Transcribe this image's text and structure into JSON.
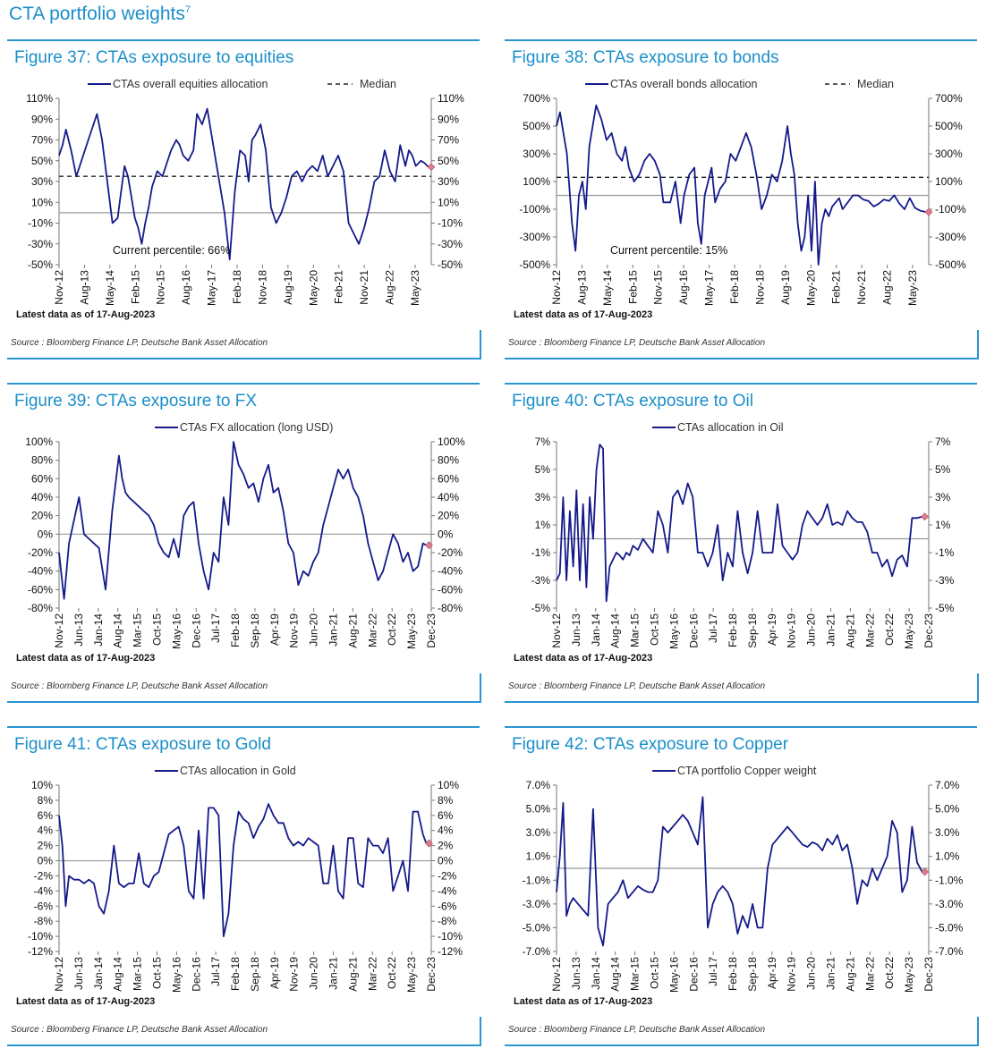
{
  "page_title": "CTA portfolio weights",
  "page_title_sup": "7",
  "colors": {
    "series": "#141a8a",
    "accent": "#1a8fc9",
    "median": "#222222",
    "zero": "#999999",
    "last_point": "#e27a8c"
  },
  "chart_data": [
    {
      "type": "line",
      "title": "Figure 37: CTAs exposure to equities",
      "series_name": "CTAs overall equities allocation",
      "median_label": "Median",
      "median": 35,
      "annotation": "Current percentile: 66%",
      "latest": "Latest data as of 17-Aug-2023",
      "source": "Source : Bloomberg Finance LP, Deutsche Bank Asset Allocation",
      "ylim": [
        -50,
        110
      ],
      "yticks": [
        110,
        90,
        70,
        50,
        30,
        10,
        -10,
        -30,
        -50
      ],
      "tick_suffix": "%",
      "xlim": [
        0,
        10.8
      ],
      "xticks": [
        "Nov-12",
        "Aug-13",
        "May-14",
        "Feb-15",
        "Nov-15",
        "Aug-16",
        "May-17",
        "Feb-18",
        "Nov-18",
        "Aug-19",
        "May-20",
        "Feb-21",
        "Nov-21",
        "Aug-22",
        "May-23"
      ],
      "x": [
        0,
        0.1,
        0.2,
        0.35,
        0.5,
        0.7,
        0.85,
        1.0,
        1.1,
        1.25,
        1.4,
        1.55,
        1.7,
        1.8,
        1.9,
        2.0,
        2.1,
        2.2,
        2.3,
        2.4,
        2.5,
        2.6,
        2.7,
        2.85,
        3.0,
        3.1,
        3.25,
        3.4,
        3.5,
        3.6,
        3.75,
        3.9,
        4.0,
        4.15,
        4.3,
        4.5,
        4.65,
        4.8,
        4.95,
        5.1,
        5.25,
        5.4,
        5.5,
        5.6,
        5.7,
        5.85,
        6.0,
        6.15,
        6.3,
        6.45,
        6.6,
        6.75,
        6.9,
        7.05,
        7.2,
        7.35,
        7.5,
        7.65,
        7.8,
        7.95,
        8.1,
        8.25,
        8.4,
        8.55,
        8.7,
        8.85,
        9.0,
        9.15,
        9.3,
        9.45,
        9.6,
        9.75,
        9.9,
        10.05,
        10.15,
        10.25,
        10.35,
        10.5,
        10.6,
        10.72
      ],
      "values": [
        55,
        65,
        80,
        60,
        35,
        55,
        70,
        85,
        95,
        70,
        30,
        -10,
        -5,
        20,
        45,
        35,
        15,
        -5,
        -15,
        -30,
        -10,
        5,
        25,
        40,
        35,
        45,
        60,
        70,
        65,
        55,
        50,
        60,
        95,
        85,
        100,
        60,
        30,
        0,
        -45,
        20,
        60,
        55,
        30,
        70,
        75,
        85,
        60,
        5,
        -10,
        0,
        15,
        35,
        40,
        30,
        40,
        45,
        40,
        55,
        35,
        45,
        55,
        40,
        -10,
        -20,
        -30,
        -15,
        5,
        30,
        35,
        60,
        40,
        30,
        65,
        45,
        60,
        55,
        45,
        50,
        48,
        44
      ],
      "last_value": 44
    },
    {
      "type": "line",
      "title": "Figure 38: CTAs exposure to bonds",
      "series_name": "CTAs overall bonds allocation",
      "median_label": "Median",
      "median": 130,
      "annotation": "Current percentile: 15%",
      "latest": "Latest data as of 17-Aug-2023",
      "source": "Source : Bloomberg Finance LP, Deutsche Bank Asset Allocation",
      "ylim": [
        -500,
        700
      ],
      "yticks": [
        700,
        500,
        300,
        100,
        -100,
        -300,
        -500
      ],
      "tick_suffix": "%",
      "xlim": [
        0,
        10.8
      ],
      "xticks": [
        "Nov-12",
        "Aug-13",
        "May-14",
        "Feb-15",
        "Nov-15",
        "Aug-16",
        "May-17",
        "Feb-18",
        "Nov-18",
        "Aug-19",
        "May-20",
        "Feb-21",
        "Nov-21",
        "Aug-22",
        "May-23"
      ],
      "x": [
        0,
        0.1,
        0.2,
        0.3,
        0.45,
        0.55,
        0.65,
        0.75,
        0.85,
        0.95,
        1.05,
        1.15,
        1.3,
        1.45,
        1.6,
        1.75,
        1.9,
        2.0,
        2.1,
        2.25,
        2.4,
        2.55,
        2.7,
        2.85,
        3.0,
        3.1,
        3.2,
        3.3,
        3.45,
        3.6,
        3.7,
        3.85,
        4.0,
        4.1,
        4.2,
        4.3,
        4.4,
        4.5,
        4.6,
        4.75,
        4.9,
        5.05,
        5.2,
        5.35,
        5.5,
        5.65,
        5.8,
        5.95,
        6.1,
        6.25,
        6.4,
        6.55,
        6.7,
        6.8,
        6.9,
        7.0,
        7.1,
        7.2,
        7.3,
        7.4,
        7.5,
        7.6,
        7.7,
        7.8,
        7.9,
        8.0,
        8.1,
        8.2,
        8.3,
        8.45,
        8.6,
        8.75,
        8.9,
        9.05,
        9.2,
        9.35,
        9.5,
        9.65,
        9.8,
        9.95,
        10.1,
        10.25,
        10.4,
        10.55,
        10.72
      ],
      "values": [
        500,
        600,
        450,
        300,
        -200,
        -400,
        0,
        100,
        -100,
        350,
        500,
        650,
        550,
        400,
        450,
        300,
        250,
        350,
        200,
        100,
        150,
        250,
        300,
        250,
        150,
        -50,
        -50,
        -50,
        100,
        -200,
        0,
        150,
        200,
        -200,
        -350,
        0,
        100,
        200,
        -50,
        50,
        100,
        300,
        250,
        350,
        450,
        350,
        150,
        -100,
        0,
        150,
        100,
        250,
        500,
        300,
        150,
        -200,
        -400,
        -300,
        0,
        -400,
        100,
        -500,
        -200,
        -100,
        -150,
        -80,
        -50,
        -20,
        -100,
        -50,
        0,
        0,
        -30,
        -40,
        -80,
        -60,
        -30,
        -40,
        0,
        -60,
        -100,
        -20,
        -90,
        -110,
        -120
      ],
      "last_value": -120
    },
    {
      "type": "line",
      "title": "Figure 39: CTAs exposure to FX",
      "series_name": "CTAs FX allocation (long USD)",
      "latest": "Latest data as of 17-Aug-2023",
      "source": "Source : Bloomberg Finance LP, Deutsche Bank Asset Allocation",
      "ylim": [
        -80,
        100
      ],
      "yticks": [
        100,
        80,
        60,
        40,
        20,
        0,
        -20,
        -40,
        -60,
        -80
      ],
      "tick_suffix": "%",
      "xlim": [
        0,
        11.2
      ],
      "xticks": [
        "Nov-12",
        "Jun-13",
        "Jan-14",
        "Aug-14",
        "Mar-15",
        "Oct-15",
        "May-16",
        "Dec-16",
        "Jul-17",
        "Feb-18",
        "Sep-18",
        "Apr-19",
        "Nov-19",
        "Jun-20",
        "Jan-21",
        "Aug-21",
        "Mar-22",
        "Oct-22",
        "May-23",
        "Dec-23"
      ],
      "x": [
        0,
        0.15,
        0.3,
        0.45,
        0.6,
        0.75,
        0.9,
        1.05,
        1.2,
        1.4,
        1.6,
        1.8,
        1.9,
        2.0,
        2.1,
        2.25,
        2.4,
        2.55,
        2.7,
        2.85,
        3.0,
        3.15,
        3.3,
        3.45,
        3.6,
        3.75,
        3.9,
        4.05,
        4.2,
        4.35,
        4.5,
        4.65,
        4.8,
        4.95,
        5.1,
        5.25,
        5.4,
        5.55,
        5.7,
        5.85,
        6.0,
        6.15,
        6.3,
        6.45,
        6.6,
        6.75,
        6.9,
        7.05,
        7.2,
        7.35,
        7.5,
        7.65,
        7.8,
        7.95,
        8.1,
        8.25,
        8.4,
        8.55,
        8.7,
        8.85,
        9.0,
        9.15,
        9.3,
        9.45,
        9.6,
        9.75,
        9.9,
        10.05,
        10.2,
        10.35,
        10.5,
        10.65,
        10.8,
        10.95,
        11.05
      ],
      "values": [
        -20,
        -70,
        -10,
        15,
        40,
        0,
        -5,
        -10,
        -15,
        -60,
        25,
        85,
        60,
        45,
        40,
        35,
        30,
        25,
        20,
        10,
        -10,
        -20,
        -25,
        -5,
        -25,
        20,
        30,
        35,
        -10,
        -40,
        -60,
        -20,
        -30,
        40,
        10,
        100,
        75,
        65,
        50,
        55,
        35,
        60,
        75,
        45,
        50,
        25,
        -10,
        -20,
        -55,
        -40,
        -45,
        -30,
        -20,
        10,
        30,
        50,
        70,
        60,
        70,
        50,
        40,
        20,
        -10,
        -30,
        -50,
        -40,
        -20,
        0,
        -10,
        -30,
        -20,
        -40,
        -35,
        -10,
        -12
      ],
      "last_value": -12
    },
    {
      "type": "line",
      "title": "Figure 40: CTAs exposure to Oil",
      "series_name": "CTAs allocation in Oil",
      "latest": "Latest data as of 17-Aug-2023",
      "source": "Source : Bloomberg Finance LP, Deutsche Bank Asset Allocation",
      "ylim": [
        -5,
        7
      ],
      "yticks": [
        7,
        5,
        3,
        1,
        -1,
        -3,
        -5
      ],
      "tick_suffix": "%",
      "xlim": [
        0,
        11.2
      ],
      "xticks": [
        "Nov-12",
        "Jun-13",
        "Jan-14",
        "Aug-14",
        "Mar-15",
        "Oct-15",
        "May-16",
        "Dec-16",
        "Jul-17",
        "Feb-18",
        "Sep-18",
        "Apr-19",
        "Nov-19",
        "Jun-20",
        "Jan-21",
        "Aug-21",
        "Mar-22",
        "Oct-22",
        "May-23",
        "Dec-23"
      ],
      "x": [
        0,
        0.1,
        0.2,
        0.3,
        0.4,
        0.5,
        0.6,
        0.7,
        0.8,
        0.9,
        1.0,
        1.1,
        1.2,
        1.3,
        1.4,
        1.5,
        1.6,
        1.7,
        1.8,
        1.9,
        2.0,
        2.1,
        2.2,
        2.3,
        2.45,
        2.6,
        2.75,
        2.9,
        3.05,
        3.2,
        3.35,
        3.5,
        3.65,
        3.8,
        3.95,
        4.1,
        4.25,
        4.4,
        4.55,
        4.7,
        4.85,
        5.0,
        5.15,
        5.3,
        5.45,
        5.6,
        5.75,
        5.9,
        6.05,
        6.2,
        6.35,
        6.5,
        6.65,
        6.8,
        6.95,
        7.1,
        7.25,
        7.4,
        7.55,
        7.7,
        7.85,
        8.0,
        8.15,
        8.3,
        8.45,
        8.6,
        8.75,
        8.9,
        9.05,
        9.2,
        9.35,
        9.5,
        9.65,
        9.8,
        9.95,
        10.1,
        10.25,
        10.4,
        10.55,
        10.7,
        10.85,
        11.0
      ],
      "values": [
        -3,
        -2.5,
        3,
        -3,
        2,
        -2,
        3.5,
        -3,
        2.5,
        -3.5,
        3,
        0,
        5,
        6.8,
        6.5,
        -4.5,
        -2,
        -1.5,
        -1,
        -1.2,
        -1.5,
        -1.0,
        -1.2,
        -0.5,
        -0.8,
        0,
        -0.5,
        -1,
        2,
        1,
        -1,
        3,
        3.5,
        2.5,
        4,
        3,
        -1,
        -1,
        -2,
        -1,
        1,
        -3,
        -1,
        -2,
        2,
        -1,
        -2.5,
        -1,
        2,
        -1,
        -1,
        -1,
        2.5,
        -0.5,
        -1,
        -1.5,
        -1,
        1,
        2,
        1.5,
        1,
        1.5,
        2.5,
        1,
        1.2,
        1,
        2,
        1.5,
        1.2,
        1.2,
        0.5,
        -1,
        -1,
        -2,
        -1.5,
        -2.7,
        -1.5,
        -1.2,
        -2,
        1.5,
        1.5,
        1.6
      ],
      "last_value": 1.6
    },
    {
      "type": "line",
      "title": "Figure 41: CTAs exposure to Gold",
      "series_name": "CTAs allocation in Gold",
      "latest": "Latest data as of 17-Aug-2023",
      "source": "Source : Bloomberg Finance LP, Deutsche Bank Asset Allocation",
      "ylim": [
        -12,
        10
      ],
      "yticks": [
        10,
        8,
        6,
        4,
        2,
        0,
        -2,
        -4,
        -6,
        -8,
        -10,
        -12
      ],
      "tick_suffix": "%",
      "xlim": [
        0,
        11.2
      ],
      "xticks": [
        "Nov-12",
        "Jun-13",
        "Jan-14",
        "Aug-14",
        "Mar-15",
        "Oct-15",
        "May-16",
        "Dec-16",
        "Jul-17",
        "Feb-18",
        "Sep-18",
        "Apr-19",
        "Nov-19",
        "Jun-20",
        "Jan-21",
        "Aug-21",
        "Mar-22",
        "Oct-22",
        "May-23",
        "Dec-23"
      ],
      "x": [
        0,
        0.1,
        0.2,
        0.3,
        0.45,
        0.6,
        0.75,
        0.9,
        1.05,
        1.2,
        1.35,
        1.5,
        1.65,
        1.8,
        1.95,
        2.1,
        2.25,
        2.4,
        2.55,
        2.7,
        2.85,
        3.0,
        3.15,
        3.3,
        3.45,
        3.6,
        3.75,
        3.9,
        4.05,
        4.2,
        4.35,
        4.5,
        4.65,
        4.8,
        4.95,
        5.1,
        5.25,
        5.4,
        5.55,
        5.7,
        5.85,
        6.0,
        6.15,
        6.3,
        6.45,
        6.6,
        6.75,
        6.9,
        7.05,
        7.2,
        7.35,
        7.5,
        7.65,
        7.8,
        7.95,
        8.1,
        8.25,
        8.4,
        8.55,
        8.7,
        8.85,
        9.0,
        9.15,
        9.3,
        9.45,
        9.6,
        9.75,
        9.9,
        10.05,
        10.2,
        10.35,
        10.5,
        10.65,
        10.8,
        10.95,
        11.05
      ],
      "values": [
        6,
        2,
        -6,
        -2,
        -2.5,
        -2.5,
        -3,
        -2.5,
        -3,
        -6,
        -7,
        -4,
        2,
        -3,
        -3.5,
        -3,
        -3,
        1,
        -3,
        -3.5,
        -2,
        -1.5,
        1,
        3.5,
        4,
        4.5,
        2,
        -4,
        -5,
        4,
        -5,
        7,
        7,
        6,
        -10,
        -7,
        2,
        6.5,
        5.5,
        5,
        3,
        4.5,
        5.5,
        7.5,
        6,
        5,
        5,
        3,
        2,
        2.5,
        2,
        3,
        2.5,
        2,
        -3,
        -3,
        2,
        -4,
        -5,
        3,
        3,
        -3,
        -3.5,
        3,
        2,
        2,
        1,
        3,
        -4,
        -2,
        0,
        -4,
        6.5,
        6.5,
        3.5,
        2.3
      ],
      "last_value": 2.3
    },
    {
      "type": "line",
      "title": "Figure 42: CTAs exposure to Copper",
      "series_name": "CTA portfolio Copper weight",
      "latest": "Latest data as of 17-Aug-2023",
      "source": "Source : Bloomberg Finance LP, Deutsche Bank Asset Allocation",
      "ylim": [
        -7,
        7
      ],
      "yticks": [
        7.0,
        5.0,
        3.0,
        1.0,
        -1.0,
        -3.0,
        -5.0,
        -7.0
      ],
      "tick_suffix": "%",
      "tick_decimals": 1,
      "xlim": [
        0,
        11.2
      ],
      "xticks": [
        "Nov-12",
        "Jun-13",
        "Jan-14",
        "Aug-14",
        "Mar-15",
        "Oct-15",
        "May-16",
        "Dec-16",
        "Jul-17",
        "Feb-18",
        "Sep-18",
        "Apr-19",
        "Nov-19",
        "Jun-20",
        "Jan-21",
        "Aug-21",
        "Mar-22",
        "Oct-22",
        "May-23",
        "Dec-23"
      ],
      "x": [
        0,
        0.1,
        0.2,
        0.3,
        0.4,
        0.5,
        0.65,
        0.8,
        0.95,
        1.1,
        1.25,
        1.4,
        1.55,
        1.7,
        1.85,
        2.0,
        2.15,
        2.3,
        2.45,
        2.6,
        2.75,
        2.9,
        3.05,
        3.2,
        3.35,
        3.5,
        3.65,
        3.8,
        3.95,
        4.1,
        4.25,
        4.4,
        4.55,
        4.7,
        4.85,
        5.0,
        5.15,
        5.3,
        5.45,
        5.6,
        5.75,
        5.9,
        6.05,
        6.2,
        6.35,
        6.5,
        6.65,
        6.8,
        6.95,
        7.1,
        7.25,
        7.4,
        7.55,
        7.7,
        7.85,
        8.0,
        8.15,
        8.3,
        8.45,
        8.6,
        8.75,
        8.9,
        9.05,
        9.2,
        9.35,
        9.5,
        9.65,
        9.8,
        9.95,
        10.1,
        10.25,
        10.4,
        10.55,
        10.7,
        10.85,
        11.0
      ],
      "values": [
        -2,
        1,
        5.5,
        -4,
        -3,
        -2.5,
        -3,
        -3.5,
        -4,
        5,
        -5,
        -6.5,
        -3,
        -2.5,
        -2,
        -1,
        -2.5,
        -2,
        -1.5,
        -1.8,
        -2,
        -2,
        -1,
        3.5,
        3,
        3.5,
        4,
        4.5,
        4,
        3,
        2,
        6,
        -5,
        -3,
        -2,
        -1.5,
        -2,
        -3,
        -5.5,
        -4,
        -5,
        -3,
        -5,
        -5,
        0,
        2,
        2.5,
        3,
        3.5,
        3,
        2.5,
        2,
        1.8,
        2.2,
        2,
        1.5,
        2.5,
        2,
        2.8,
        1.5,
        2,
        0,
        -3,
        -1,
        -1.5,
        0,
        -1,
        0,
        1,
        4,
        3,
        -2,
        -1,
        3.5,
        0.5,
        -0.3
      ],
      "last_value": -0.3
    }
  ]
}
